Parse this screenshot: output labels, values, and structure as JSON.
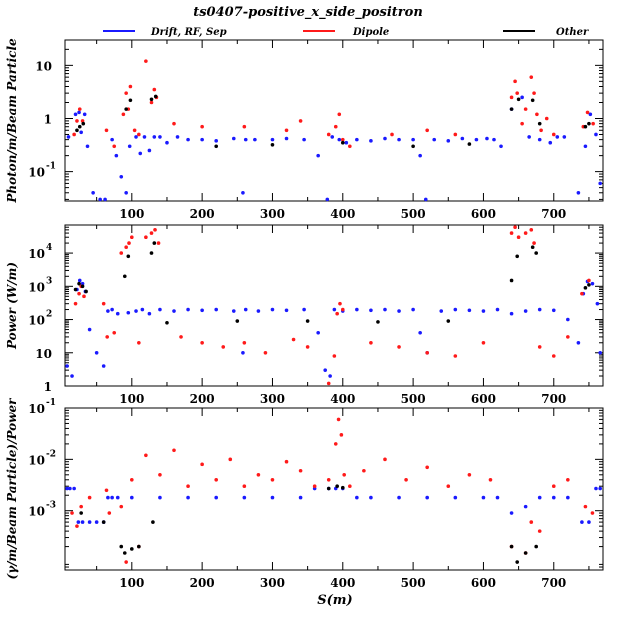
{
  "chart_data": {
    "type": "scatter",
    "title": "ts0407-positive_x_side_positron",
    "xlabel": "S(m)",
    "legend": {
      "placement": "top",
      "entries": [
        {
          "name": "Drift, RF, Sep",
          "color": "#1a1aff"
        },
        {
          "name": "Dipole",
          "color": "#ff1a1a"
        },
        {
          "name": "Other",
          "color": "#000000"
        }
      ]
    },
    "x_range": [
      5,
      770
    ],
    "x_ticks": [
      100,
      200,
      300,
      400,
      500,
      600,
      700
    ],
    "x_tick_labels": [
      "100",
      "200",
      "300",
      "400",
      "500",
      "600",
      "700"
    ],
    "grid": false,
    "panels": [
      {
        "id": "photon",
        "ylabel": "Photon/m/Beam Particle",
        "log_scale": true,
        "ylim": [
          0.028,
          30
        ],
        "y_ticks": [
          {
            "value": 10,
            "base": "10",
            "exp": ""
          },
          {
            "value": 1,
            "base": "1",
            "exp": ""
          },
          {
            "value": 0.1,
            "base": "10",
            "exp": "-1"
          }
        ],
        "series": [
          {
            "name": "Drift, RF, Sep",
            "x": [
              10,
              20,
              25,
              28,
              33,
              37,
              45,
              55,
              62,
              72,
              78,
              85,
              92,
              97,
              106,
              112,
              118,
              125,
              132,
              140,
              150,
              165,
              180,
              200,
              220,
              245,
              258,
              262,
              275,
              300,
              320,
              345,
              365,
              378,
              385,
              395,
              405,
              420,
              440,
              460,
              480,
              500,
              510,
              518,
              530,
              550,
              570,
              590,
              605,
              615,
              625,
              640,
              655,
              665,
              680,
              695,
              705,
              715,
              735,
              745,
              752,
              760,
              766
            ],
            "y": [
              0.45,
              1.2,
              1.3,
              0.55,
              1.2,
              0.3,
              0.04,
              0.03,
              0.03,
              0.4,
              0.2,
              0.08,
              0.04,
              0.3,
              0.45,
              0.22,
              0.45,
              0.25,
              0.45,
              0.45,
              0.35,
              0.45,
              0.4,
              0.4,
              0.38,
              0.42,
              0.04,
              0.4,
              0.4,
              0.4,
              0.42,
              0.4,
              0.2,
              0.03,
              0.45,
              0.4,
              0.35,
              0.4,
              0.38,
              0.42,
              0.4,
              0.4,
              0.2,
              0.03,
              0.4,
              0.38,
              0.42,
              0.4,
              0.42,
              0.4,
              0.3,
              1.5,
              2.5,
              0.45,
              0.4,
              0.35,
              0.45,
              0.45,
              0.04,
              0.3,
              1.2,
              0.5,
              0.06
            ]
          },
          {
            "name": "Dipole",
            "x": [
              18,
              22,
              26,
              30,
              64,
              75,
              88,
              92,
              95,
              98,
              104,
              110,
              120,
              128,
              132,
              135,
              160,
              200,
              260,
              320,
              340,
              380,
              390,
              395,
              400,
              410,
              470,
              520,
              560,
              640,
              645,
              648,
              655,
              660,
              668,
              672,
              676,
              682,
              690,
              700,
              742,
              748,
              756
            ],
            "y": [
              0.5,
              0.9,
              1.5,
              0.9,
              0.6,
              0.3,
              1.2,
              3,
              1.5,
              4,
              0.6,
              0.5,
              12,
              2,
              3.5,
              2.5,
              0.8,
              0.7,
              0.7,
              0.6,
              0.9,
              0.5,
              0.7,
              1.2,
              0.4,
              0.3,
              0.5,
              0.6,
              0.5,
              2.5,
              5,
              3,
              0.8,
              1.5,
              6,
              3,
              1.2,
              0.6,
              1,
              0.5,
              0.7,
              1.3,
              0.8
            ]
          },
          {
            "name": "Other",
            "x": [
              22,
              26,
              31,
              92,
              98,
              128,
              134,
              220,
              300,
              400,
              500,
              580,
              640,
              650,
              670,
              680,
              745,
              750
            ],
            "y": [
              0.6,
              0.7,
              0.8,
              1.5,
              2.2,
              2.3,
              2.6,
              0.3,
              0.32,
              0.35,
              0.3,
              0.33,
              1.5,
              2.3,
              2.2,
              0.8,
              0.7,
              0.8
            ]
          }
        ]
      },
      {
        "id": "power",
        "ylabel": "Power (W/m)",
        "log_scale": true,
        "ylim": [
          1,
          70000
        ],
        "y_ticks": [
          {
            "value": 10000,
            "base": "10",
            "exp": "4"
          },
          {
            "value": 1000,
            "base": "10",
            "exp": "3"
          },
          {
            "value": 100,
            "base": "10",
            "exp": "2"
          },
          {
            "value": 10,
            "base": "10",
            "exp": ""
          },
          {
            "value": 1,
            "base": "1",
            "exp": ""
          }
        ],
        "series": [
          {
            "name": "Drift, RF, Sep",
            "x": [
              8,
              15,
              22,
              26,
              30,
              34,
              40,
              50,
              60,
              66,
              72,
              80,
              95,
              106,
              115,
              125,
              140,
              160,
              180,
              200,
              220,
              245,
              258,
              262,
              280,
              300,
              320,
              345,
              365,
              375,
              382,
              388,
              400,
              420,
              440,
              460,
              480,
              500,
              510,
              520,
              540,
              560,
              580,
              600,
              620,
              640,
              660,
              680,
              700,
              720,
              735,
              742,
              748,
              755,
              762,
              766
            ],
            "y": [
              4,
              2,
              800,
              1500,
              1200,
              700,
              50,
              10,
              4,
              180,
              200,
              150,
              160,
              180,
              200,
              150,
              200,
              180,
              200,
              190,
              200,
              180,
              10,
              200,
              180,
              200,
              190,
              200,
              40,
              3,
              2,
              200,
              180,
              200,
              190,
              200,
              180,
              200,
              40,
              10,
              180,
              200,
              190,
              180,
              200,
              150,
              180,
              200,
              190,
              100,
              20,
              600,
              1400,
              1200,
              300,
              10
            ]
          },
          {
            "name": "Dipole",
            "x": [
              20,
              25,
              28,
              32,
              60,
              65,
              75,
              85,
              92,
              96,
              100,
              110,
              120,
              128,
              133,
              138,
              170,
              200,
              230,
              260,
              290,
              330,
              350,
              380,
              388,
              392,
              396,
              400,
              440,
              480,
              520,
              560,
              600,
              640,
              645,
              650,
              660,
              668,
              672,
              680,
              700,
              720,
              740,
              750
            ],
            "y": [
              300,
              600,
              1000,
              500,
              300,
              30,
              40,
              10000,
              15000,
              20000,
              30000,
              20,
              30000,
              40000,
              50000,
              20000,
              30,
              20,
              15,
              20,
              10,
              25,
              15,
              1.2,
              8,
              150,
              300,
              200,
              20,
              15,
              10,
              8,
              20,
              40000,
              60000,
              30000,
              40000,
              50000,
              20000,
              15,
              8,
              30,
              600,
              1500
            ]
          },
          {
            "name": "Other",
            "x": [
              20,
              25,
              30,
              35,
              90,
              95,
              128,
              132,
              150,
              250,
              350,
              450,
              550,
              640,
              648,
              670,
              675,
              745,
              750
            ],
            "y": [
              800,
              1200,
              1000,
              700,
              2000,
              8000,
              10000,
              20000,
              80,
              90,
              90,
              85,
              90,
              1500,
              8000,
              15000,
              10000,
              900,
              1100
            ]
          }
        ]
      },
      {
        "id": "ratio",
        "ylabel": "(γ/m/Beam Particle)/Power",
        "log_scale": true,
        "ylim": [
          7e-05,
          0.1
        ],
        "y_ticks": [
          {
            "value": 0.1,
            "base": "10",
            "exp": "-1"
          },
          {
            "value": 0.01,
            "base": "10",
            "exp": "-2"
          },
          {
            "value": 0.001,
            "base": "10",
            "exp": "-3"
          }
        ],
        "series": [
          {
            "name": "Drift, RF, Sep",
            "x": [
              8,
              12,
              18,
              24,
              30,
              40,
              50,
              60,
              66,
              72,
              80,
              100,
              140,
              180,
              220,
              260,
              300,
              340,
              360,
              380,
              390,
              400,
              420,
              440,
              480,
              520,
              560,
              600,
              620,
              640,
              660,
              680,
              700,
              720,
              740,
              750,
              760,
              766
            ],
            "y": [
              0.0027,
              0.0027,
              0.0027,
              0.0006,
              0.0006,
              0.0006,
              0.0006,
              0.0006,
              0.0018,
              0.0018,
              0.0018,
              0.0018,
              0.0018,
              0.0018,
              0.0018,
              0.0018,
              0.0018,
              0.0018,
              0.0027,
              0.0027,
              0.0027,
              0.0027,
              0.0018,
              0.0018,
              0.0018,
              0.0018,
              0.0018,
              0.0018,
              0.0018,
              0.0009,
              0.0012,
              0.0018,
              0.0018,
              0.0018,
              0.0006,
              0.0006,
              0.0027,
              0.0027
            ]
          },
          {
            "name": "Dipole",
            "x": [
              15,
              22,
              28,
              40,
              64,
              68,
              85,
              92,
              100,
              110,
              120,
              140,
              160,
              180,
              200,
              220,
              240,
              260,
              280,
              300,
              320,
              340,
              360,
              380,
              390,
              394,
              398,
              402,
              410,
              430,
              460,
              490,
              520,
              550,
              580,
              610,
              640,
              660,
              668,
              680,
              700,
              720,
              745,
              755
            ],
            "y": [
              0.0009,
              0.0005,
              0.0012,
              0.0018,
              0.0025,
              0.0009,
              0.0012,
              0.0001,
              0.004,
              0.0002,
              0.012,
              0.005,
              0.015,
              0.003,
              0.008,
              0.004,
              0.01,
              0.003,
              0.005,
              0.004,
              0.009,
              0.006,
              0.003,
              0.004,
              0.02,
              0.06,
              0.03,
              0.005,
              0.003,
              0.006,
              0.01,
              0.004,
              0.007,
              0.003,
              0.005,
              0.004,
              0.0002,
              0.00015,
              0.0006,
              0.0004,
              0.003,
              0.004,
              0.0012,
              0.0009
            ]
          },
          {
            "name": "Other",
            "x": [
              28,
              60,
              85,
              90,
              100,
              110,
              130,
              380,
              392,
              400,
              640,
              648,
              660,
              675
            ],
            "y": [
              0.0009,
              0.0006,
              0.0002,
              0.00015,
              0.00018,
              0.0002,
              0.0006,
              0.0027,
              0.003,
              0.0028,
              0.0002,
              0.0001,
              0.00015,
              0.0002
            ]
          }
        ]
      }
    ]
  }
}
